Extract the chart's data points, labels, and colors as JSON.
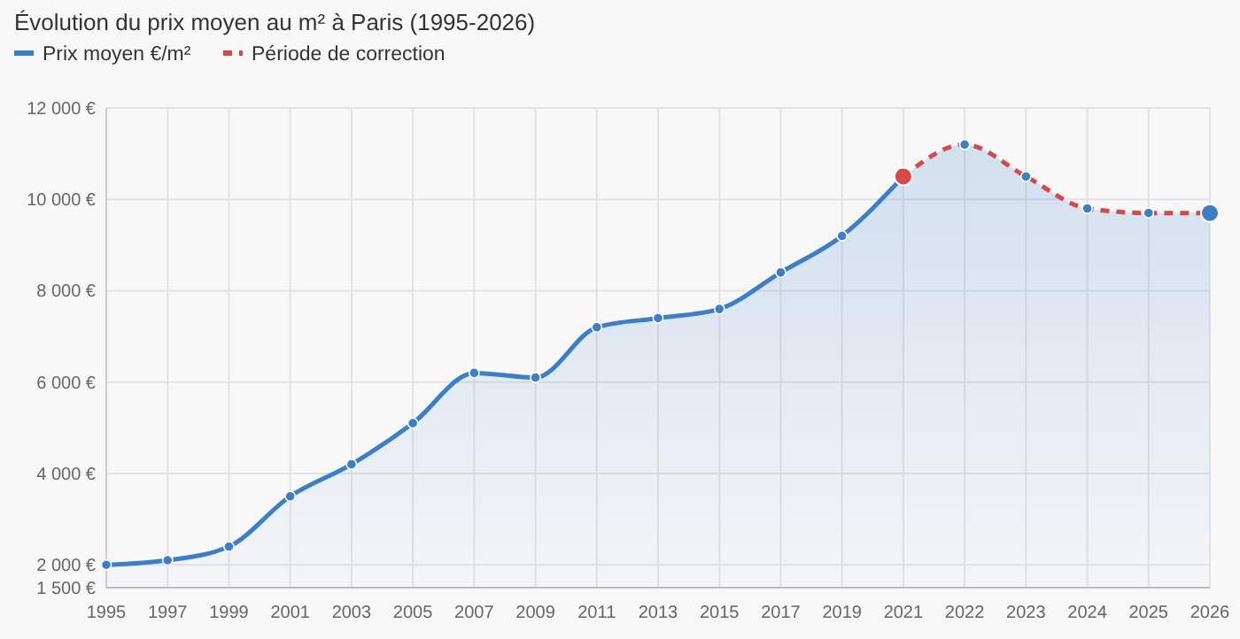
{
  "chart_data": {
    "type": "area",
    "title": "Évolution du prix moyen au m² à Paris (1995-2026)",
    "categories": [
      "1995",
      "1997",
      "1999",
      "2001",
      "2003",
      "2005",
      "2007",
      "2009",
      "2011",
      "2013",
      "2015",
      "2017",
      "2019",
      "2021",
      "2022",
      "2023",
      "2024",
      "2025",
      "2026"
    ],
    "series": [
      {
        "name": "Prix moyen €/m²",
        "color": "#3b7fc9",
        "values": [
          2000,
          2100,
          2400,
          3500,
          4200,
          5100,
          6200,
          6100,
          7200,
          7400,
          7600,
          8400,
          9200,
          10500,
          null,
          null,
          null,
          null,
          null
        ]
      },
      {
        "name": "Période de correction",
        "color": "#d94848",
        "line_style": "dashed",
        "values": [
          null,
          null,
          null,
          null,
          null,
          null,
          null,
          null,
          null,
          null,
          null,
          null,
          null,
          10500,
          11200,
          10500,
          9800,
          9700,
          9700
        ]
      }
    ],
    "ylim": [
      1500,
      12000
    ],
    "yticks": [
      {
        "value": 1500,
        "label": "1 500 €"
      },
      {
        "value": 2000,
        "label": "2 000 €"
      },
      {
        "value": 4000,
        "label": "4 000 €"
      },
      {
        "value": 6000,
        "label": "6 000 €"
      },
      {
        "value": 8000,
        "label": "8 000 €"
      },
      {
        "value": 10000,
        "label": "10 000 €"
      },
      {
        "value": 12000,
        "label": "12 000 €"
      }
    ],
    "grid": true,
    "legend": "top left",
    "marker": "circle"
  }
}
